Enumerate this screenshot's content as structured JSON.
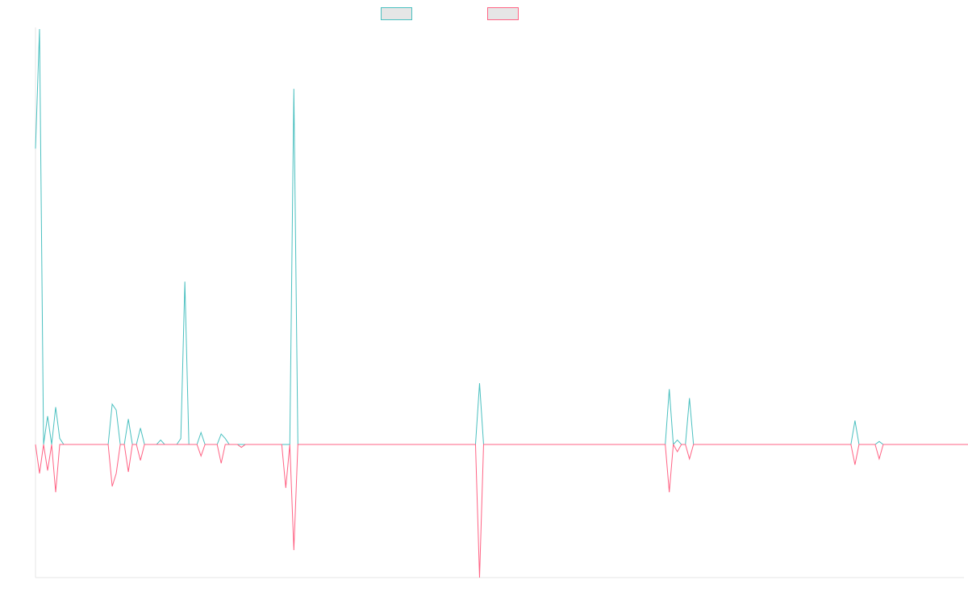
{
  "chart_data": {
    "type": "line",
    "title": "",
    "xlabel": "",
    "ylabel": "",
    "grid": false,
    "legend_position": "top-center",
    "ylim": [
      -1,
      2.6
    ],
    "x_count": 231,
    "series": [
      {
        "name": "",
        "color": "#4bc0c0",
        "values": [
          1.98,
          2.78,
          0,
          0.19,
          0,
          0.25,
          0.04,
          0,
          0,
          0,
          0,
          0,
          0,
          0,
          0,
          0,
          0,
          0,
          0,
          0.27,
          0.23,
          0,
          0,
          0.17,
          0,
          0,
          0.11,
          0,
          0,
          0,
          0,
          0.03,
          0,
          0,
          0,
          0,
          0.04,
          1.09,
          0,
          0,
          0,
          0.08,
          0,
          0,
          0,
          0,
          0.07,
          0.04,
          0,
          0,
          0,
          0,
          0,
          0,
          0,
          0,
          0,
          0,
          0,
          0,
          0,
          0,
          0,
          0,
          2.38,
          0,
          0,
          0,
          0,
          0,
          0,
          0,
          0,
          0,
          0,
          0,
          0,
          0,
          0,
          0,
          0,
          0,
          0,
          0,
          0,
          0,
          0,
          0,
          0,
          0,
          0,
          0,
          0,
          0,
          0,
          0,
          0,
          0,
          0,
          0,
          0,
          0,
          0,
          0,
          0,
          0,
          0,
          0,
          0,
          0,
          0.41,
          0,
          0,
          0,
          0,
          0,
          0,
          0,
          0,
          0,
          0,
          0,
          0,
          0,
          0,
          0,
          0,
          0,
          0,
          0,
          0,
          0,
          0,
          0,
          0,
          0,
          0,
          0,
          0,
          0,
          0,
          0,
          0,
          0,
          0,
          0,
          0,
          0,
          0,
          0,
          0,
          0,
          0,
          0,
          0,
          0,
          0,
          0.37,
          0,
          0.03,
          0,
          0,
          0.31,
          0,
          0,
          0,
          0,
          0,
          0,
          0,
          0,
          0,
          0,
          0,
          0,
          0,
          0,
          0,
          0,
          0,
          0,
          0,
          0,
          0,
          0,
          0,
          0,
          0,
          0,
          0,
          0,
          0,
          0,
          0,
          0,
          0,
          0,
          0,
          0,
          0,
          0,
          0,
          0,
          0.16,
          0,
          0,
          0,
          0,
          0,
          0.02,
          0,
          0,
          0,
          0,
          0,
          0,
          0,
          0,
          0,
          0,
          0,
          0,
          0,
          0,
          0,
          0,
          0,
          0,
          0,
          0,
          0,
          0,
          0,
          0,
          0,
          0
        ]
      },
      {
        "name": "",
        "color": "#ff6384",
        "values": [
          0,
          -0.2,
          0,
          -0.18,
          0,
          -0.33,
          0,
          0,
          0,
          0,
          0,
          0,
          0,
          0,
          0,
          0,
          0,
          0,
          0,
          -0.29,
          -0.2,
          0,
          0,
          -0.19,
          0,
          0,
          -0.11,
          0,
          0,
          0,
          0,
          0,
          0,
          0,
          0,
          0,
          0,
          0,
          0,
          0,
          0,
          -0.08,
          0,
          0,
          0,
          0,
          -0.13,
          0,
          0,
          0,
          0,
          -0.02,
          0,
          0,
          0,
          0,
          0,
          0,
          0,
          0,
          0,
          0,
          -0.3,
          0,
          -0.73,
          0,
          0,
          0,
          0,
          0,
          0,
          0,
          0,
          0,
          0,
          0,
          0,
          0,
          0,
          0,
          0,
          0,
          0,
          0,
          0,
          0,
          0,
          0,
          0,
          0,
          0,
          0,
          0,
          0,
          0,
          0,
          0,
          0,
          0,
          0,
          0,
          0,
          0,
          0,
          0,
          0,
          0,
          0,
          0,
          0,
          -0.92,
          0,
          0,
          0,
          0,
          0,
          0,
          0,
          0,
          0,
          0,
          0,
          0,
          0,
          0,
          0,
          0,
          0,
          0,
          0,
          0,
          0,
          0,
          0,
          0,
          0,
          0,
          0,
          0,
          0,
          0,
          0,
          0,
          0,
          0,
          0,
          0,
          0,
          0,
          0,
          0,
          0,
          0,
          0,
          0,
          0,
          0,
          -0.33,
          0,
          -0.05,
          0,
          0,
          -0.1,
          0,
          0,
          0,
          0,
          0,
          0,
          0,
          0,
          0,
          0,
          0,
          0,
          0,
          0,
          0,
          0,
          0,
          0,
          0,
          0,
          0,
          0,
          0,
          0,
          0,
          0,
          0,
          0,
          0,
          0,
          0,
          0,
          0,
          0,
          0,
          0,
          0,
          0,
          0,
          0,
          -0.14,
          0,
          0,
          0,
          0,
          0,
          -0.1,
          0,
          0,
          0,
          0,
          0,
          0,
          0,
          0,
          0,
          0,
          0,
          0,
          0,
          0,
          0,
          0,
          0,
          0,
          0,
          0,
          0,
          0,
          0,
          0,
          0,
          0
        ]
      }
    ]
  }
}
